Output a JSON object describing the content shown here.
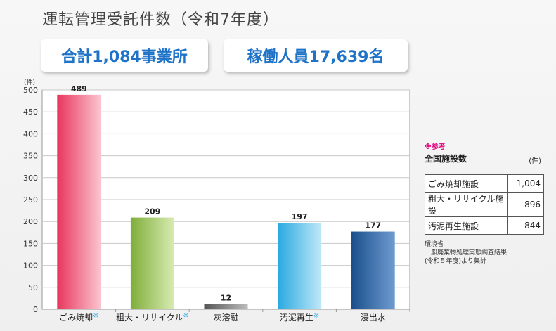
{
  "header": {
    "title": "運転管理受託件数（令和7年度）",
    "badge_total": "合計1,084事業所",
    "badge_staff": "稼働人員17,639名"
  },
  "chart_data": {
    "type": "bar",
    "ylabel": "(件)",
    "ylim": [
      0,
      500
    ],
    "yticks": [
      0,
      50,
      100,
      150,
      200,
      250,
      300,
      350,
      400,
      450,
      500
    ],
    "categories": [
      "ごみ焼却",
      "粗大・リサイクル",
      "灰溶融",
      "汚泥再生",
      "浸出水"
    ],
    "category_markers": [
      "※",
      "※",
      "",
      "※",
      ""
    ],
    "values": [
      489,
      209,
      12,
      197,
      177
    ],
    "colors": [
      "#e8365d",
      "#7fae3a",
      "#555555",
      "#2aa9e0",
      "#1a4f8c"
    ],
    "light_colors": [
      "#fbc4cf",
      "#d8ebb2",
      "#bdbdbd",
      "#bfe8f8",
      "#6f9bd0"
    ],
    "grid": true
  },
  "reference": {
    "note": "※参考",
    "title": "全国施設数",
    "unit": "(件)",
    "rows": [
      {
        "label": "ごみ焼却施設",
        "value": "1,004"
      },
      {
        "label": "粗大・リサイクル施設",
        "value": "896"
      },
      {
        "label": "汚泥再生施設",
        "value": "844"
      }
    ],
    "source_line1": "環境省",
    "source_line2": "一般廃棄物処理実態調査結果",
    "source_line3": "(令和５年度)より集計"
  }
}
